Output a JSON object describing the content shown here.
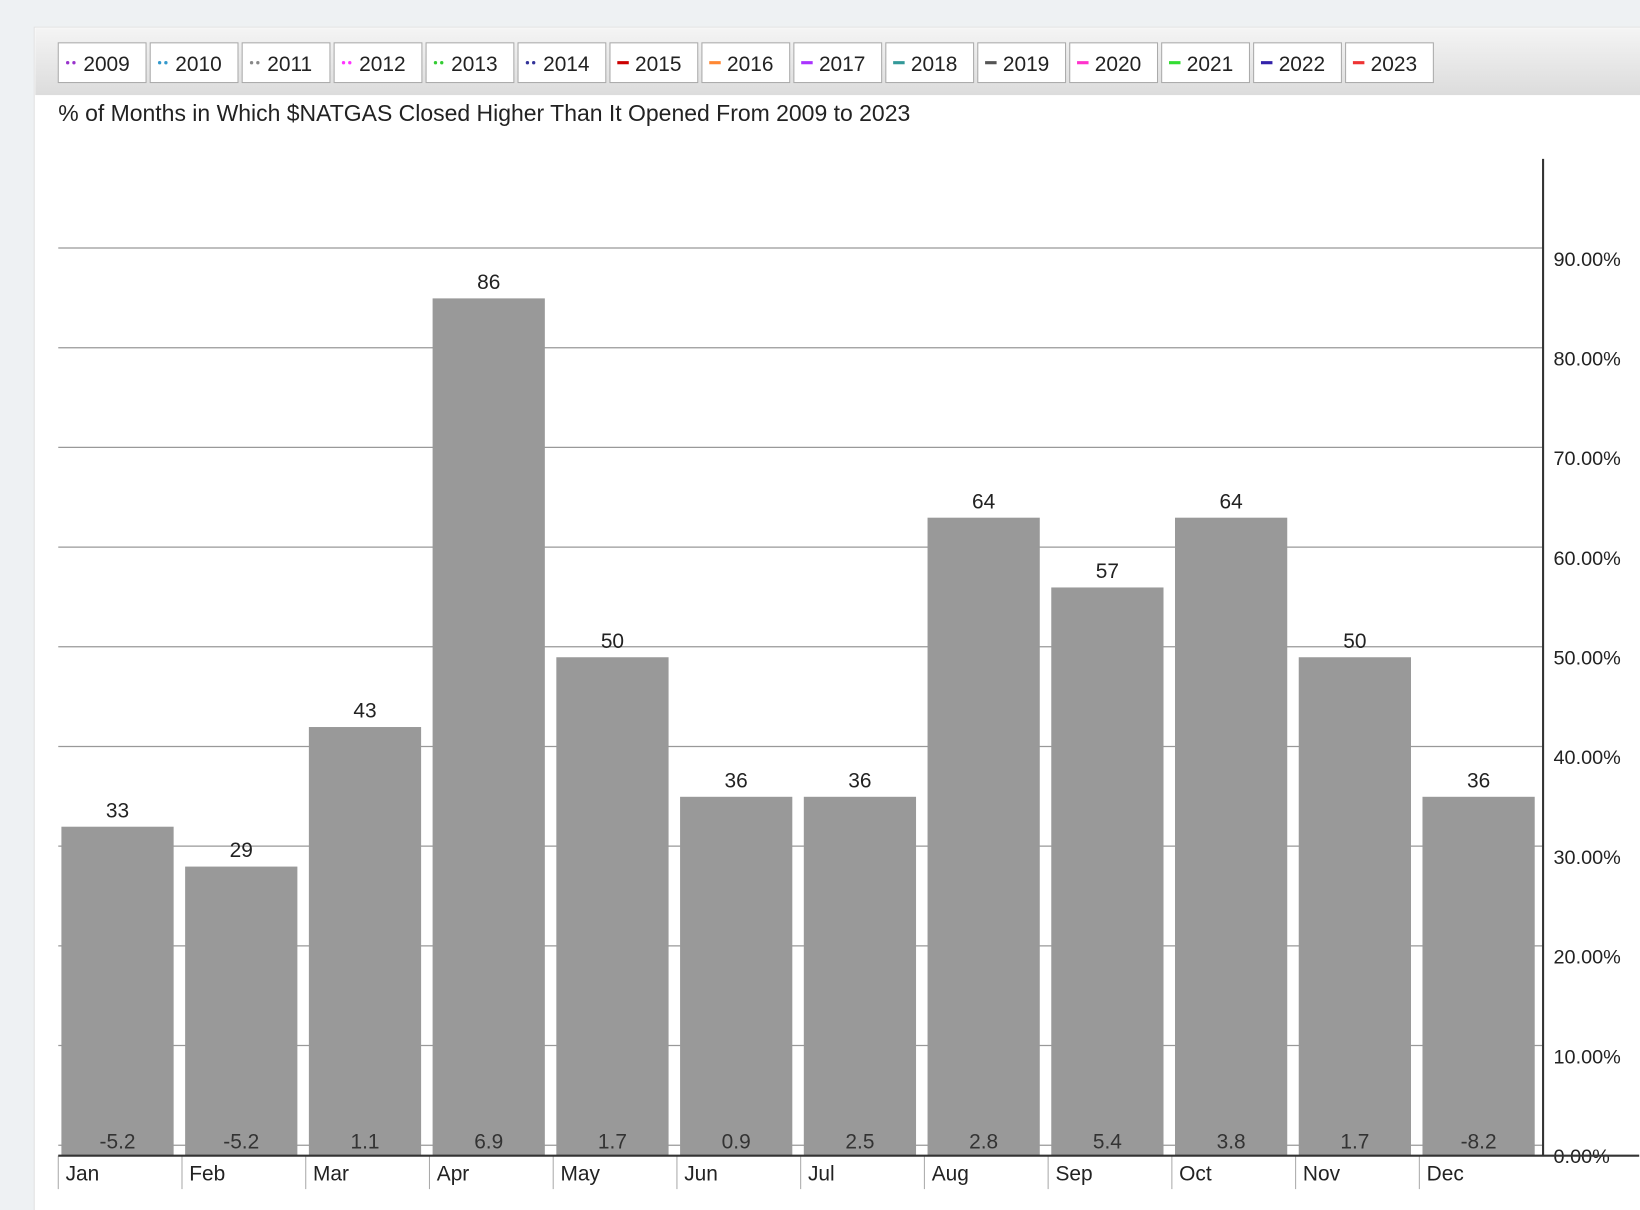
{
  "chart_data": {
    "type": "bar",
    "title": "% of Months in Which $NATGAS Closed Higher Than It Opened From 2009 to 2023",
    "legend": [
      {
        "name": "2009",
        "color": "#9933cc",
        "style": "dotted"
      },
      {
        "name": "2010",
        "color": "#3399cc",
        "style": "dotted"
      },
      {
        "name": "2011",
        "color": "#888888",
        "style": "dotted"
      },
      {
        "name": "2012",
        "color": "#ff33ff",
        "style": "dotted"
      },
      {
        "name": "2013",
        "color": "#33cc33",
        "style": "dotted"
      },
      {
        "name": "2014",
        "color": "#333399",
        "style": "dotted"
      },
      {
        "name": "2015",
        "color": "#cc0000",
        "style": "solid"
      },
      {
        "name": "2016",
        "color": "#ff8833",
        "style": "solid"
      },
      {
        "name": "2017",
        "color": "#aa33ff",
        "style": "solid"
      },
      {
        "name": "2018",
        "color": "#339999",
        "style": "solid"
      },
      {
        "name": "2019",
        "color": "#555555",
        "style": "solid"
      },
      {
        "name": "2020",
        "color": "#ff33cc",
        "style": "solid"
      },
      {
        "name": "2021",
        "color": "#33dd33",
        "style": "solid"
      },
      {
        "name": "2022",
        "color": "#3322aa",
        "style": "solid"
      },
      {
        "name": "2023",
        "color": "#ee3333",
        "style": "solid"
      }
    ],
    "categories": [
      "Jan",
      "Feb",
      "Mar",
      "Apr",
      "May",
      "Jun",
      "Jul",
      "Aug",
      "Sep",
      "Oct",
      "Nov",
      "Dec"
    ],
    "values": [
      33,
      29,
      43,
      86,
      50,
      36,
      36,
      64,
      57,
      64,
      50,
      36
    ],
    "bottom_values": [
      -5.2,
      -5.2,
      1.1,
      6.9,
      1.7,
      0.9,
      2.5,
      2.8,
      5.4,
      3.8,
      1.7,
      -8.2
    ],
    "color": "#999999",
    "ylim": [
      0,
      100
    ],
    "yticks": [
      {
        "value": 0,
        "label": "0.00%"
      },
      {
        "value": 10,
        "label": "10.00%"
      },
      {
        "value": 20,
        "label": "20.00%"
      },
      {
        "value": 30,
        "label": "30.00%"
      },
      {
        "value": 40,
        "label": "40.00%"
      },
      {
        "value": 50,
        "label": "50.00%"
      },
      {
        "value": 60,
        "label": "60.00%"
      },
      {
        "value": 70,
        "label": "70.00%"
      },
      {
        "value": 80,
        "label": "80.00%"
      },
      {
        "value": 90,
        "label": "90.00%"
      }
    ],
    "grid": true
  }
}
